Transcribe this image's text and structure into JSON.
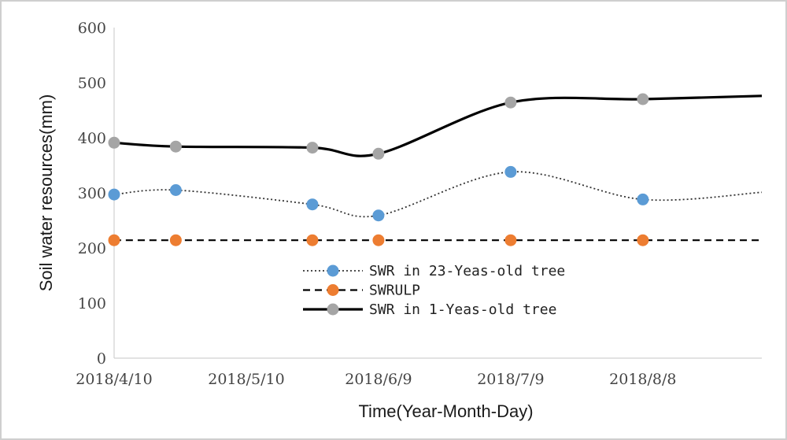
{
  "chart_data": {
    "type": "line",
    "title": "",
    "xlabel": "Time(Year-Month-Day)",
    "ylabel": "Soil water resources(mm)",
    "ylim": [
      0,
      600
    ],
    "yticks": [
      0,
      100,
      200,
      300,
      400,
      500,
      600
    ],
    "xlim": [
      "2018-04-10",
      "2018-09-04"
    ],
    "xtick_labels": [
      "2018/4/10",
      "2018/5/10",
      "2018/6/9",
      "2018/7/9",
      "2018/8/8"
    ],
    "xtick_dates": [
      "2018-04-10",
      "2018-05-10",
      "2018-06-09",
      "2018-07-09",
      "2018-08-08"
    ],
    "grid": false,
    "legend_position": "center-left",
    "series": [
      {
        "name": "SWR in 23-Yeas-old tree",
        "line_style": "dotted",
        "line_color": "#333333",
        "marker_color": "#5b9bd5",
        "points": [
          {
            "x": "2018-04-10",
            "y": 297
          },
          {
            "x": "2018-04-24",
            "y": 305
          },
          {
            "x": "2018-05-25",
            "y": 279
          },
          {
            "x": "2018-06-09",
            "y": 259
          },
          {
            "x": "2018-07-09",
            "y": 338
          },
          {
            "x": "2018-08-08",
            "y": 288
          }
        ],
        "end": {
          "x": "2018-09-04",
          "y": 301
        }
      },
      {
        "name": "SWRULP",
        "line_style": "dashed",
        "line_color": "#000000",
        "marker_color": "#ed7d31",
        "points": [
          {
            "x": "2018-04-10",
            "y": 214
          },
          {
            "x": "2018-04-24",
            "y": 214
          },
          {
            "x": "2018-05-25",
            "y": 214
          },
          {
            "x": "2018-06-09",
            "y": 214
          },
          {
            "x": "2018-07-09",
            "y": 214
          },
          {
            "x": "2018-08-08",
            "y": 214
          }
        ],
        "end": {
          "x": "2018-09-04",
          "y": 214
        }
      },
      {
        "name": "SWR in 1-Yeas-old tree",
        "line_style": "solid",
        "line_color": "#000000",
        "marker_color": "#a5a5a5",
        "points": [
          {
            "x": "2018-04-10",
            "y": 391
          },
          {
            "x": "2018-04-24",
            "y": 384
          },
          {
            "x": "2018-05-25",
            "y": 382
          },
          {
            "x": "2018-06-09",
            "y": 371
          },
          {
            "x": "2018-07-09",
            "y": 464
          },
          {
            "x": "2018-08-08",
            "y": 470
          }
        ],
        "end": {
          "x": "2018-09-04",
          "y": 476
        }
      }
    ]
  }
}
